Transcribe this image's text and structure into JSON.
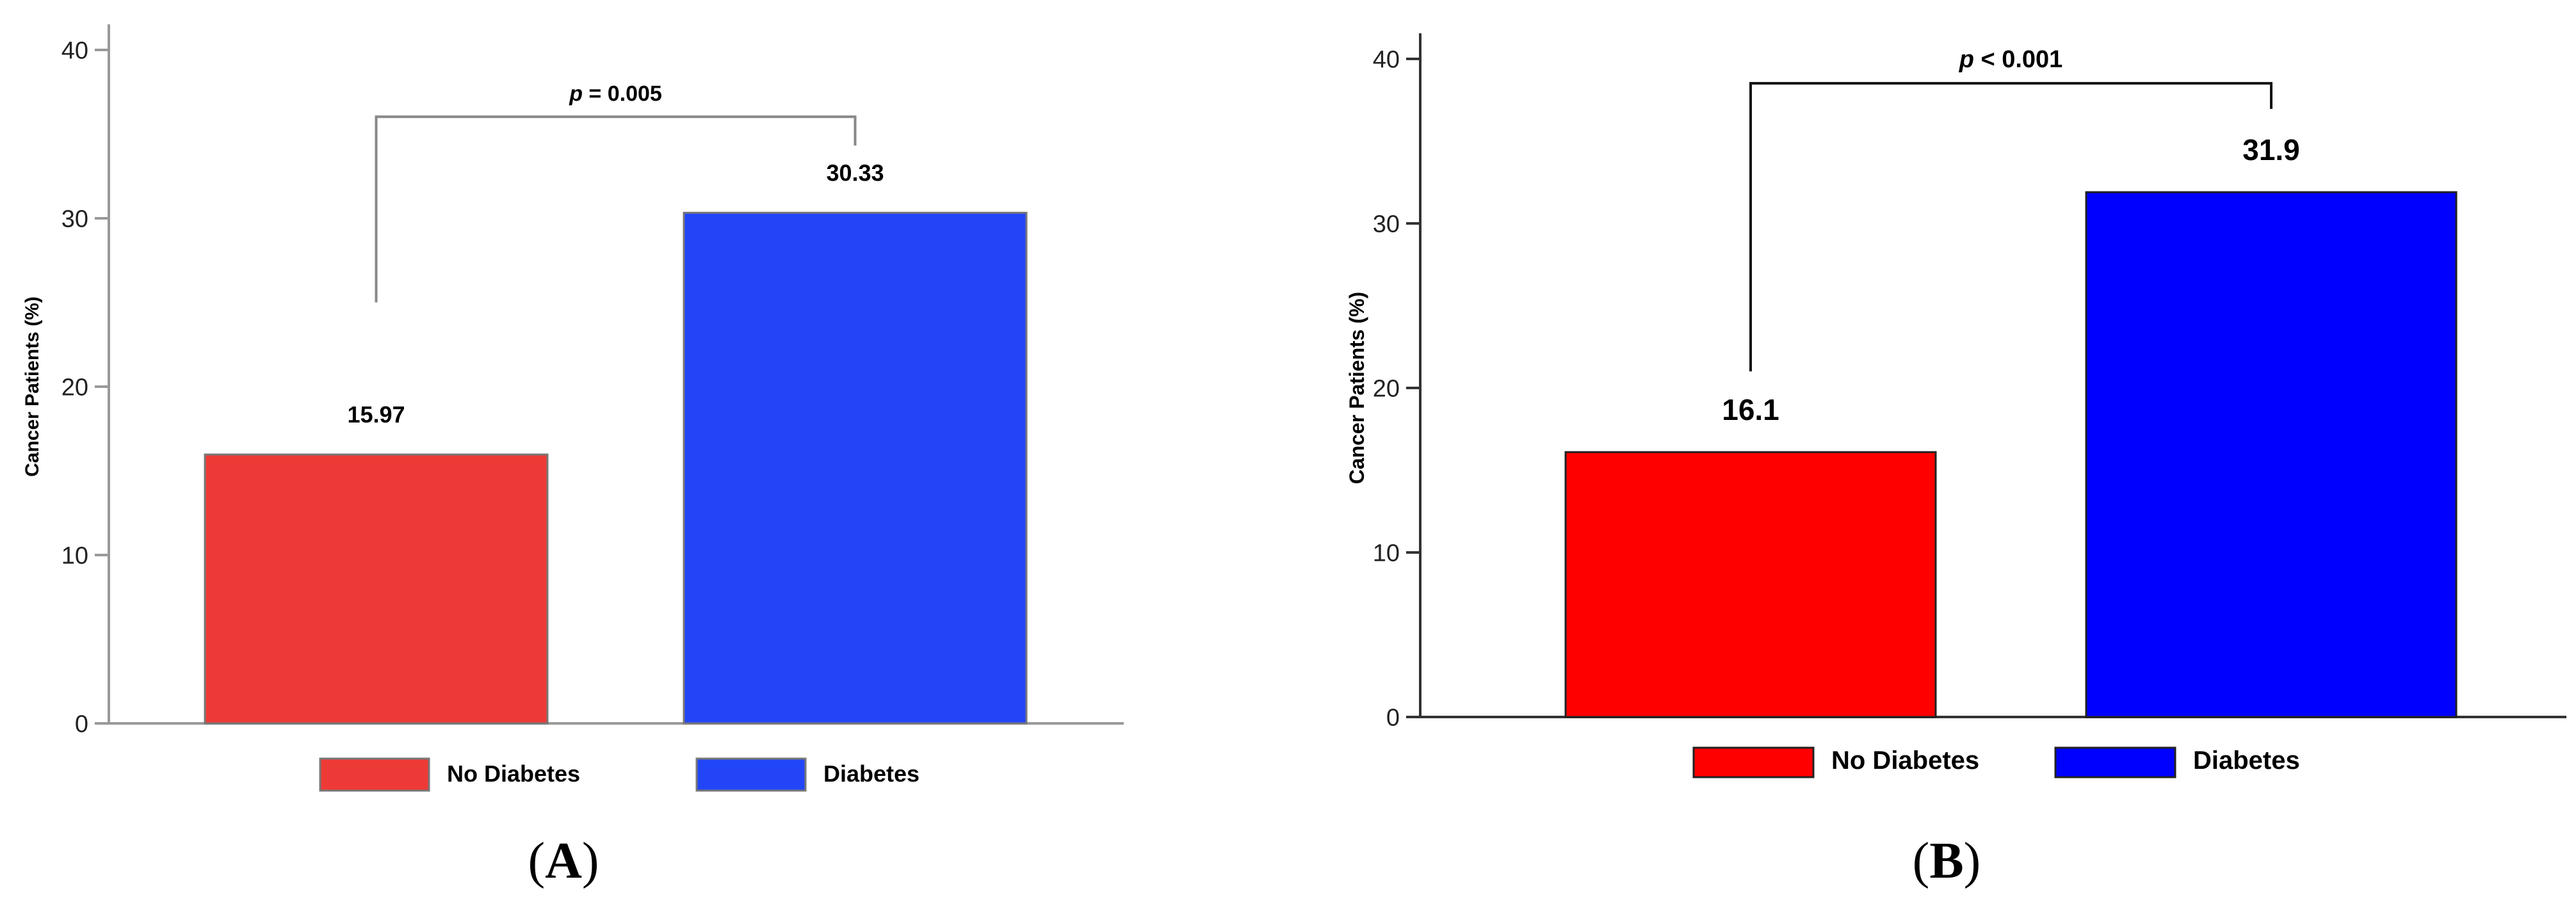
{
  "chart_data": [
    {
      "type": "bar",
      "panel_label": "A",
      "categories": [
        "No Diabetes",
        "Diabetes"
      ],
      "values": [
        15.97,
        30.33
      ],
      "value_labels": [
        "15.97",
        "30.33"
      ],
      "colors": [
        "#ee3a36",
        "#2246f7"
      ],
      "ylabel": "Cancer Patients (%)",
      "ylim": [
        0,
        40
      ],
      "yticks": [
        "0",
        "10",
        "20",
        "30",
        "40"
      ],
      "grid": false,
      "legend": {
        "placement": "bottom",
        "entries": [
          "No Diabetes",
          "Diabetes"
        ]
      },
      "annotation": {
        "type": "significance-bracket",
        "italic": "p",
        "text": " = 0.005",
        "between": [
          "No Diabetes",
          "Diabetes"
        ]
      }
    },
    {
      "type": "bar",
      "panel_label": "B",
      "categories": [
        "No Diabetes",
        "Diabetes"
      ],
      "values": [
        16.1,
        31.9
      ],
      "value_labels": [
        "16.1",
        "31.9"
      ],
      "colors": [
        "#ff0000",
        "#0000ff"
      ],
      "ylabel": "Cancer Patients (%)",
      "ylim": [
        0,
        40
      ],
      "yticks": [
        "0",
        "10",
        "20",
        "30",
        "40"
      ],
      "grid": false,
      "legend": {
        "placement": "bottom",
        "entries": [
          "No Diabetes",
          "Diabetes"
        ]
      },
      "annotation": {
        "type": "significance-bracket",
        "italic": "p",
        "text": " < 0.001",
        "between": [
          "No Diabetes",
          "Diabetes"
        ]
      }
    }
  ]
}
